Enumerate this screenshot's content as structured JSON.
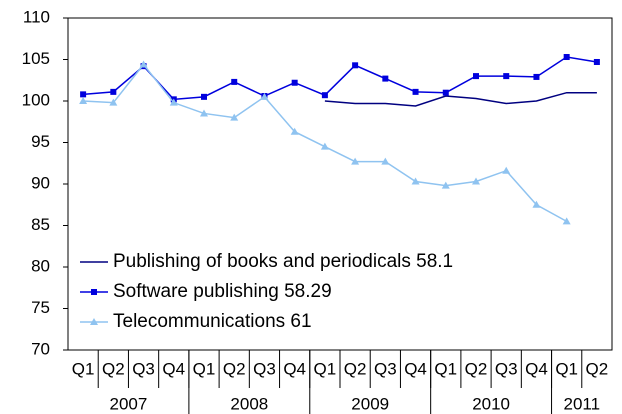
{
  "chart_data": {
    "type": "line",
    "categories": [
      "Q1",
      "Q2",
      "Q3",
      "Q4",
      "Q1",
      "Q2",
      "Q3",
      "Q4",
      "Q1",
      "Q2",
      "Q3",
      "Q4",
      "Q1",
      "Q2",
      "Q3",
      "Q4",
      "Q1",
      "Q2"
    ],
    "x_groups": [
      {
        "label": "2007",
        "count": 4
      },
      {
        "label": "2008",
        "count": 4
      },
      {
        "label": "2009",
        "count": 4
      },
      {
        "label": "2010",
        "count": 4
      },
      {
        "label": "2011",
        "count": 2
      }
    ],
    "series": [
      {
        "name": "Publishing of books and periodicals 58.1",
        "color": "#000080",
        "marker": "none",
        "values": [
          null,
          null,
          null,
          null,
          null,
          null,
          null,
          null,
          100.0,
          99.7,
          99.7,
          99.4,
          100.6,
          100.3,
          99.7,
          100.0,
          101.0,
          101.0
        ]
      },
      {
        "name": "Software publishing 58.29",
        "color": "#0000dd",
        "marker": "square",
        "values": [
          100.8,
          101.1,
          104.2,
          100.2,
          100.5,
          102.3,
          100.6,
          102.2,
          100.7,
          104.3,
          102.7,
          101.1,
          101.0,
          103.0,
          103.0,
          102.9,
          105.3,
          104.7
        ]
      },
      {
        "name": "Telecommunications 61",
        "color": "#8fc3f0",
        "marker": "triangle",
        "values": [
          100.0,
          99.8,
          104.4,
          99.8,
          98.5,
          98.0,
          100.5,
          96.3,
          94.5,
          92.7,
          92.7,
          90.3,
          89.8,
          90.3,
          91.6,
          87.5,
          85.5,
          null
        ]
      }
    ],
    "ylim": [
      70,
      110
    ],
    "yticks": [
      70,
      75,
      80,
      85,
      90,
      95,
      100,
      105,
      110
    ],
    "grid": false,
    "legend": "lower left"
  }
}
